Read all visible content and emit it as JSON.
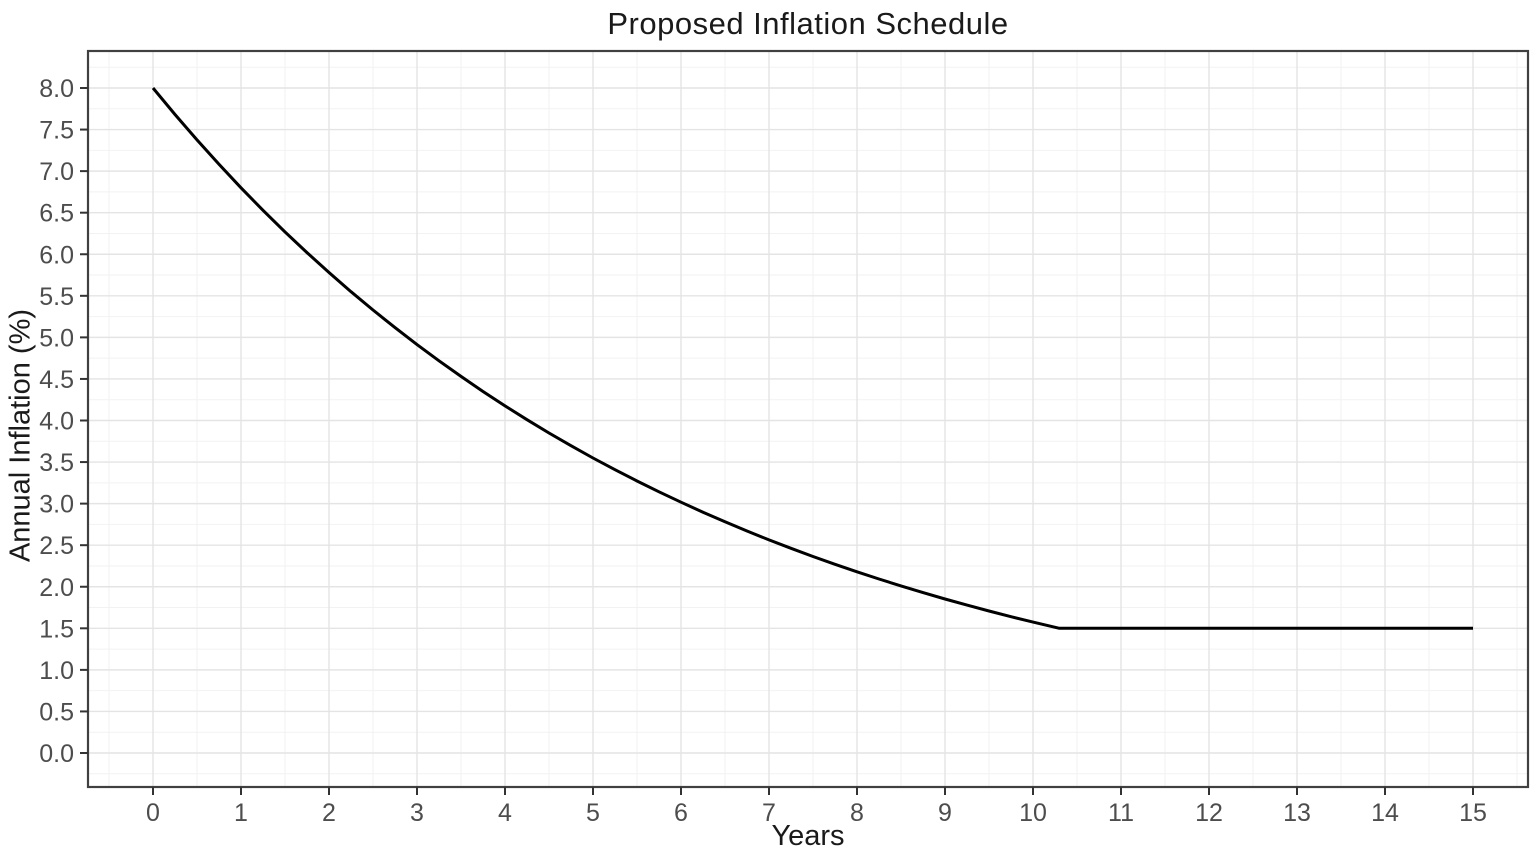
{
  "chart_data": {
    "type": "line",
    "title": "Proposed Inflation Schedule",
    "xlabel": "Years",
    "ylabel": "Annual Inflation (%)",
    "xlim": [
      0,
      15
    ],
    "ylim": [
      0,
      8
    ],
    "x_ticks": [
      "0",
      "1",
      "2",
      "3",
      "4",
      "5",
      "6",
      "7",
      "8",
      "9",
      "10",
      "11",
      "12",
      "13",
      "14",
      "15"
    ],
    "y_ticks": [
      "0.0",
      "0.5",
      "1.0",
      "1.5",
      "2.0",
      "2.5",
      "3.0",
      "3.5",
      "4.0",
      "4.5",
      "5.0",
      "5.5",
      "6.0",
      "6.5",
      "7.0",
      "7.5",
      "8.0"
    ],
    "grid": "major and minor gridlines on, legend none",
    "series": [
      {
        "name": "annual-inflation-curve",
        "points": [
          [
            0.0,
            8.0
          ],
          [
            0.25,
            7.681
          ],
          [
            0.5,
            7.376
          ],
          [
            0.75,
            7.082
          ],
          [
            1.0,
            6.8
          ],
          [
            1.25,
            6.529
          ],
          [
            1.5,
            6.269
          ],
          [
            1.75,
            6.02
          ],
          [
            2.0,
            5.78
          ],
          [
            2.25,
            5.55
          ],
          [
            2.5,
            5.329
          ],
          [
            2.75,
            5.117
          ],
          [
            3.0,
            4.913
          ],
          [
            3.25,
            4.718
          ],
          [
            3.5,
            4.53
          ],
          [
            3.75,
            4.349
          ],
          [
            4.0,
            4.176
          ],
          [
            4.25,
            4.01
          ],
          [
            4.5,
            3.85
          ],
          [
            4.75,
            3.697
          ],
          [
            5.0,
            3.549
          ],
          [
            5.25,
            3.408
          ],
          [
            5.5,
            3.272
          ],
          [
            5.75,
            3.142
          ],
          [
            6.0,
            3.017
          ],
          [
            6.25,
            2.897
          ],
          [
            6.5,
            2.781
          ],
          [
            6.75,
            2.671
          ],
          [
            7.0,
            2.564
          ],
          [
            7.25,
            2.462
          ],
          [
            7.5,
            2.364
          ],
          [
            7.75,
            2.27
          ],
          [
            8.0,
            2.18
          ],
          [
            8.25,
            2.093
          ],
          [
            8.5,
            2.01
          ],
          [
            8.75,
            1.93
          ],
          [
            9.0,
            1.853
          ],
          [
            9.25,
            1.779
          ],
          [
            9.5,
            1.708
          ],
          [
            9.75,
            1.64
          ],
          [
            10.0,
            1.575
          ],
          [
            10.3,
            1.5
          ],
          [
            10.5,
            1.5
          ],
          [
            11.0,
            1.5
          ],
          [
            12.0,
            1.5
          ],
          [
            13.0,
            1.5
          ],
          [
            14.0,
            1.5
          ],
          [
            15.0,
            1.5
          ]
        ]
      }
    ]
  },
  "style": {
    "background": "#ffffff",
    "line_color": "#000000",
    "panel_border_color": "#404040",
    "grid_major_color": "#e4e4e4",
    "grid_minor_color": "#f2f2f2",
    "tick_mark_color": "#333333",
    "tick_label_color": "#4d4d4d",
    "title_color": "#1a1a1a"
  }
}
